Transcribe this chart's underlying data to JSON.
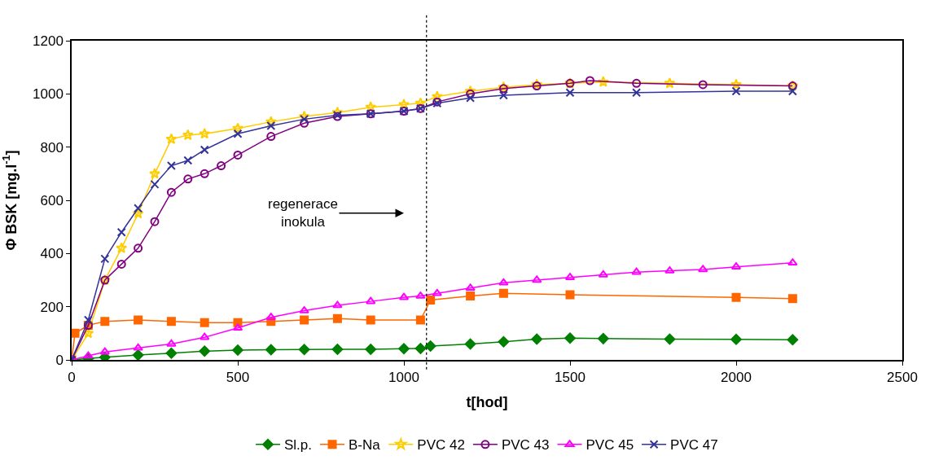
{
  "chart_data": {
    "type": "line",
    "xlabel": "t[hod]",
    "ylabel": "Φ BSK [mg.l$^{-1}$]",
    "xlim": [
      0,
      2500
    ],
    "xticks": [
      0,
      500,
      1000,
      1500,
      2000,
      2500
    ],
    "ylim": [
      0,
      1200
    ],
    "yticks": [
      0,
      200,
      400,
      600,
      800,
      1000,
      1200
    ],
    "legend": "bottom",
    "ref_lines": [
      {
        "axis": "x",
        "value": 1068,
        "label": null,
        "line_style": "dotted",
        "color": "#000000"
      }
    ],
    "annotations": [
      "regenerace\ninokula"
    ],
    "series": [
      {
        "name": "Sl.p.",
        "color": "#008000",
        "marker": "diamond",
        "x": [
          0,
          50,
          100,
          200,
          300,
          400,
          500,
          600,
          700,
          800,
          900,
          1000,
          1050,
          1080,
          1200,
          1300,
          1400,
          1500,
          1600,
          1800,
          2000,
          2170
        ],
        "values": [
          0,
          5,
          10,
          18,
          25,
          33,
          37,
          38,
          39,
          40,
          40,
          42,
          43,
          52,
          60,
          68,
          78,
          82,
          80,
          78,
          77,
          76
        ]
      },
      {
        "name": "B-Na",
        "color": "#ff6600",
        "marker": "square",
        "x": [
          0,
          10,
          50,
          100,
          200,
          300,
          400,
          500,
          600,
          700,
          800,
          900,
          1050,
          1080,
          1200,
          1300,
          1500,
          2000,
          2170
        ],
        "values": [
          0,
          100,
          130,
          145,
          150,
          145,
          140,
          140,
          145,
          150,
          155,
          150,
          150,
          225,
          240,
          250,
          245,
          235,
          230
        ]
      },
      {
        "name": "PVC 42",
        "color": "#ffcc00",
        "marker": "star",
        "x": [
          0,
          50,
          100,
          150,
          200,
          250,
          300,
          350,
          400,
          500,
          600,
          700,
          800,
          900,
          1000,
          1050,
          1100,
          1200,
          1300,
          1400,
          1500,
          1600,
          1800,
          2000,
          2170
        ],
        "values": [
          0,
          100,
          300,
          420,
          550,
          700,
          830,
          845,
          850,
          870,
          895,
          915,
          930,
          950,
          960,
          965,
          990,
          1010,
          1025,
          1035,
          1040,
          1045,
          1040,
          1035,
          1030
        ]
      },
      {
        "name": "PVC 43",
        "color": "#800080",
        "marker": "circle",
        "x": [
          0,
          50,
          100,
          150,
          200,
          250,
          300,
          350,
          400,
          450,
          500,
          600,
          700,
          800,
          900,
          1000,
          1050,
          1100,
          1200,
          1300,
          1400,
          1500,
          1560,
          1700,
          1900,
          2170
        ],
        "values": [
          0,
          130,
          300,
          360,
          420,
          520,
          630,
          680,
          700,
          730,
          770,
          840,
          890,
          915,
          925,
          935,
          945,
          970,
          1000,
          1020,
          1030,
          1040,
          1050,
          1040,
          1035,
          1030
        ]
      },
      {
        "name": "PVC 45",
        "color": "#ff00ff",
        "marker": "triangle",
        "x": [
          0,
          50,
          100,
          200,
          300,
          400,
          500,
          600,
          700,
          800,
          900,
          1000,
          1050,
          1100,
          1200,
          1300,
          1400,
          1500,
          1600,
          1700,
          1800,
          1900,
          2000,
          2170
        ],
        "values": [
          0,
          15,
          30,
          45,
          60,
          85,
          120,
          160,
          185,
          205,
          220,
          235,
          240,
          250,
          270,
          290,
          300,
          310,
          320,
          330,
          335,
          340,
          350,
          365
        ]
      },
      {
        "name": "PVC 47",
        "color": "#333399",
        "marker": "cross",
        "x": [
          0,
          50,
          100,
          150,
          200,
          250,
          300,
          350,
          400,
          500,
          600,
          700,
          800,
          900,
          1000,
          1050,
          1100,
          1200,
          1300,
          1500,
          1700,
          2000,
          2170
        ],
        "values": [
          0,
          150,
          380,
          480,
          570,
          660,
          730,
          750,
          790,
          850,
          880,
          905,
          920,
          925,
          935,
          945,
          965,
          985,
          995,
          1005,
          1005,
          1010,
          1010
        ]
      }
    ]
  }
}
